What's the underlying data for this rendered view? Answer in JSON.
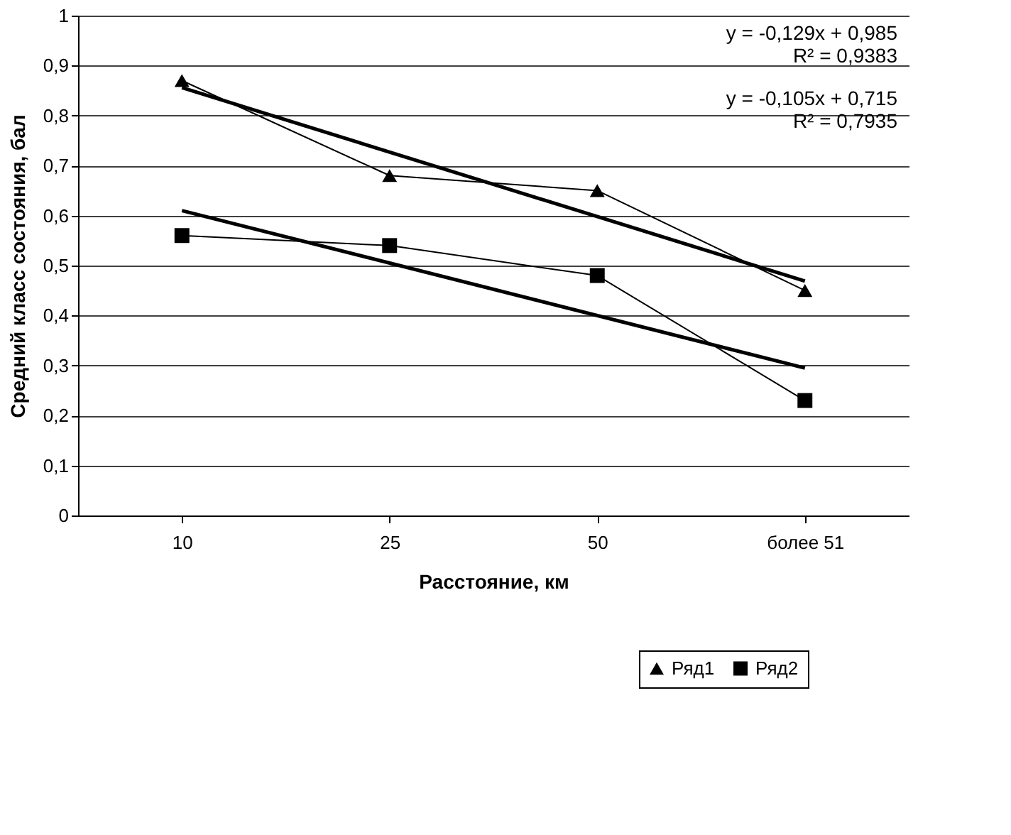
{
  "chart_data": {
    "type": "line",
    "xlabel": "Расстояние, км",
    "ylabel": "Средний класс состояния, бал",
    "categories": [
      "10",
      "25",
      "50",
      "более 51"
    ],
    "series": [
      {
        "name": "Ряд1",
        "color": "#000000",
        "marker": "triangle",
        "values": [
          0.87,
          0.68,
          0.65,
          0.45
        ]
      },
      {
        "name": "Ряд2",
        "color": "#000000",
        "marker": "square",
        "values": [
          0.56,
          0.54,
          0.48,
          0.23
        ]
      },
      {
        "type": "line",
        "color": "#000000",
        "marker": "none",
        "x": [
          "10",
          "более 51"
        ],
        "values": [
          0.856,
          0.469
        ]
      },
      {
        "type": "line",
        "color": "#000000",
        "marker": "none",
        "x": [
          "10",
          "более 51"
        ],
        "values": [
          0.61,
          0.295
        ]
      }
    ],
    "ylim": [
      0,
      1
    ],
    "yticks": [
      0,
      {
        "value": 0.1,
        "label": "0,1"
      },
      {
        "value": 0.2,
        "label": "0,2"
      },
      {
        "value": 0.3,
        "label": "0,3"
      },
      {
        "value": 0.4,
        "label": "0,4"
      },
      {
        "value": 0.5,
        "label": "0,5"
      },
      {
        "value": 0.6,
        "label": "0,6"
      },
      {
        "value": 0.7,
        "label": "0,7"
      },
      {
        "value": 0.8,
        "label": "0,8"
      },
      {
        "value": 0.9,
        "label": "0,9"
      },
      1
    ],
    "annotations": [
      "y = -0,129x + 0,985",
      "R² = 0,9383",
      "y = -0,105x + 0,715",
      "R² = 0,7935"
    ],
    "grid": "y",
    "legend": "bottom right",
    "line_style": "solid"
  }
}
